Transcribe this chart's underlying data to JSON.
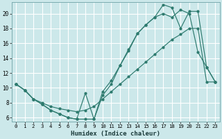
{
  "xlabel": "Humidex (Indice chaleur)",
  "bg_color": "#cce8ea",
  "line_color": "#2d7a6e",
  "grid_color": "#b8d8da",
  "xlim": [
    -0.5,
    23.5
  ],
  "ylim": [
    5.5,
    21.5
  ],
  "xticks": [
    0,
    1,
    2,
    3,
    4,
    5,
    6,
    7,
    8,
    9,
    10,
    11,
    12,
    13,
    14,
    15,
    16,
    17,
    18,
    19,
    20,
    21,
    22,
    23
  ],
  "yticks": [
    6,
    8,
    10,
    12,
    14,
    16,
    18,
    20
  ],
  "series1_x": [
    0,
    1,
    2,
    3,
    4,
    5,
    6,
    7,
    8,
    9,
    10,
    11,
    12,
    13,
    14,
    15,
    16,
    17,
    18,
    19,
    20,
    21,
    22,
    23
  ],
  "series1_y": [
    10.5,
    9.7,
    8.5,
    7.8,
    7.0,
    6.5,
    6.0,
    5.8,
    9.3,
    5.8,
    9.0,
    10.5,
    13.0,
    15.0,
    17.3,
    18.5,
    19.5,
    20.0,
    19.5,
    20.5,
    20.0,
    14.8,
    12.8,
    10.8
  ],
  "series2_x": [
    0,
    1,
    2,
    3,
    4,
    5,
    6,
    7,
    8,
    9,
    10,
    11,
    12,
    13,
    14,
    15,
    16,
    17,
    18,
    19,
    20,
    21,
    22,
    23
  ],
  "series2_y": [
    10.5,
    9.7,
    8.5,
    8.0,
    7.5,
    7.2,
    7.0,
    6.8,
    7.0,
    7.5,
    8.5,
    9.5,
    10.5,
    11.5,
    12.5,
    13.5,
    14.5,
    15.5,
    16.5,
    17.2,
    18.0,
    18.0,
    10.8,
    10.8
  ],
  "series3_x": [
    0,
    1,
    2,
    3,
    4,
    5,
    6,
    7,
    8,
    9,
    10,
    11,
    12,
    13,
    14,
    15,
    16,
    17,
    18,
    19,
    20,
    21,
    22,
    23
  ],
  "series3_y": [
    10.5,
    9.7,
    8.5,
    7.8,
    7.0,
    6.5,
    6.0,
    5.8,
    5.8,
    5.8,
    9.5,
    11.0,
    13.0,
    15.2,
    17.3,
    18.5,
    19.5,
    21.2,
    20.8,
    18.0,
    20.3,
    20.3,
    12.8,
    10.8
  ]
}
